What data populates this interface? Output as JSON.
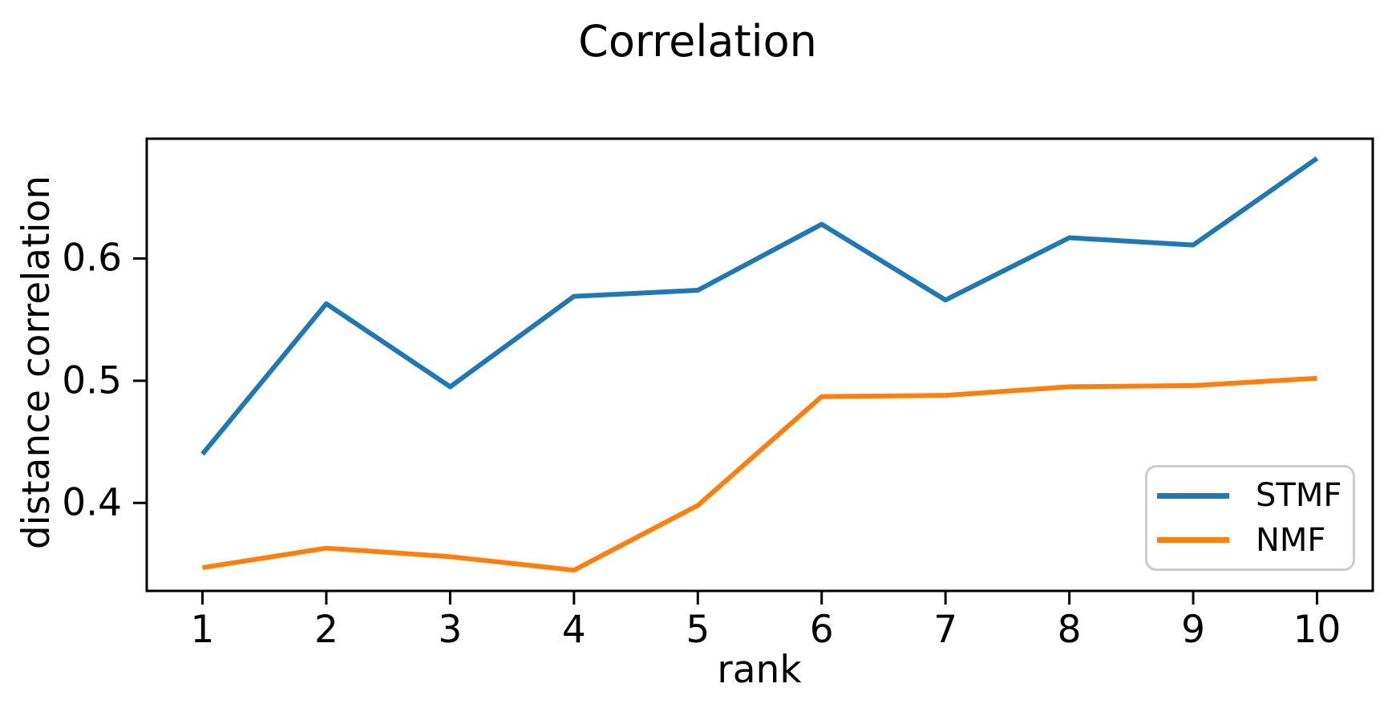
{
  "chart_data": {
    "type": "line",
    "title": "Correlation",
    "xlabel": "rank",
    "ylabel": "distance correlation",
    "x": [
      1,
      2,
      3,
      4,
      5,
      6,
      7,
      8,
      9,
      10
    ],
    "series": [
      {
        "name": "STMF",
        "color": "#1f77b4",
        "values": [
          0.44,
          0.563,
          0.495,
          0.569,
          0.574,
          0.628,
          0.566,
          0.617,
          0.611,
          0.682
        ]
      },
      {
        "name": "NMF",
        "color": "#ff7f0e",
        "values": [
          0.347,
          0.363,
          0.356,
          0.345,
          0.398,
          0.487,
          0.488,
          0.495,
          0.496,
          0.502
        ]
      }
    ],
    "xticks": [
      1,
      2,
      3,
      4,
      5,
      6,
      7,
      8,
      9,
      10
    ],
    "yticks": [
      0.4,
      0.5,
      0.6
    ],
    "xlim": [
      0.55,
      10.45
    ],
    "ylim": [
      0.328,
      0.698
    ],
    "grid": false,
    "legend_position": "lower right",
    "axis_color": "#000000",
    "background_color": "#ffffff"
  }
}
